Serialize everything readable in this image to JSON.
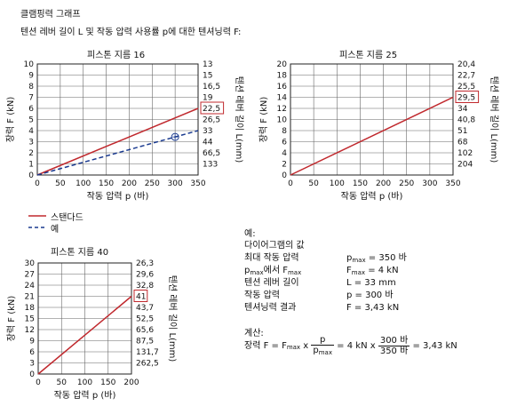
{
  "header": {
    "title": "클램핑력 그래프",
    "subtitle": "텐션 레버 길이 L 및 작동 압력 사용률 p에 대한 텐셔닝력 F:"
  },
  "colors": {
    "standard": "#c0282d",
    "example": "#1a3a8f",
    "grid": "#666666"
  },
  "chart_data": [
    {
      "type": "line",
      "title": "피스톤 지름 16",
      "xlabel": "작동 압력 p (바)",
      "ylabel": "장력 F (kN)",
      "y2label": "텐션 레버 길이 L(mm)",
      "xlim": [
        0,
        350
      ],
      "ylim": [
        0,
        10
      ],
      "xticks": [
        "0",
        "50",
        "100",
        "150",
        "200",
        "250",
        "300",
        "350"
      ],
      "yticks": [
        "0",
        "1",
        "2",
        "3",
        "4",
        "5",
        "6",
        "7",
        "8",
        "9",
        "10"
      ],
      "y2ticks": [
        "",
        "133",
        "66,5",
        "44",
        "33",
        "26,5",
        "22,5",
        "19",
        "16,5",
        "15",
        "13"
      ],
      "highlight_y2": "22,5",
      "series": [
        {
          "name": "스탠다드",
          "style": "solid",
          "x": [
            0,
            350
          ],
          "y": [
            0,
            6
          ]
        },
        {
          "name": "예",
          "style": "dashed",
          "x": [
            0,
            300,
            350
          ],
          "y": [
            0,
            3.43,
            4
          ]
        }
      ],
      "marker": {
        "x": 300,
        "y": 3.43
      }
    },
    {
      "type": "line",
      "title": "피스톤 지름 25",
      "xlabel": "작동 압력 p (바)",
      "ylabel": "장력 F (kN)",
      "y2label": "텐션 레버 길이 L(mm)",
      "xlim": [
        0,
        350
      ],
      "ylim": [
        0,
        20
      ],
      "xticks": [
        "0",
        "50",
        "100",
        "150",
        "200",
        "250",
        "300",
        "350"
      ],
      "yticks": [
        "0",
        "2",
        "4",
        "6",
        "8",
        "10",
        "12",
        "14",
        "16",
        "18",
        "20"
      ],
      "y2ticks": [
        "",
        "204",
        "102",
        "68",
        "51",
        "40,8",
        "34",
        "29,5",
        "25,5",
        "22,7",
        "20,4"
      ],
      "highlight_y2": "29,5",
      "series": [
        {
          "name": "스탠다드",
          "style": "solid",
          "x": [
            0,
            350
          ],
          "y": [
            0,
            14
          ]
        }
      ]
    },
    {
      "type": "line",
      "title": "피스톤 지름 40",
      "xlabel": "작동 압력 p (바)",
      "ylabel": "장력 F (kN)",
      "y2label": "텐션 레버 길이 L(mm)",
      "xlim": [
        0,
        200
      ],
      "ylim": [
        0,
        30
      ],
      "xticks": [
        "0",
        "50",
        "100",
        "150",
        "200"
      ],
      "yticks": [
        "0",
        "3",
        "6",
        "9",
        "12",
        "15",
        "18",
        "21",
        "24",
        "27",
        "30"
      ],
      "y2ticks": [
        "",
        "262,5",
        "131,7",
        "87,5",
        "65,6",
        "52,5",
        "43,7",
        "41",
        "32,8",
        "29,6",
        "26,3"
      ],
      "highlight_y2": "41",
      "series": [
        {
          "name": "스탠다드",
          "style": "solid",
          "x": [
            0,
            200
          ],
          "y": [
            0,
            21
          ]
        }
      ]
    }
  ],
  "legend": {
    "items": [
      {
        "label": "스탠다드",
        "style": "solid"
      },
      {
        "label": "예",
        "style": "dashed"
      }
    ]
  },
  "example": {
    "heading": "예:",
    "diagram_values": "다이어그램의 값",
    "rows": [
      {
        "label": "최대 작동 압력",
        "value": "p",
        "value_sub": "max",
        "value_rest": " = 350 바"
      },
      {
        "label_main": "p",
        "label_sub": "max",
        "label_mid": "에서 F",
        "label_sub2": "max",
        "value": "F",
        "value_sub": "max",
        "value_rest": " = 4 kN"
      },
      {
        "label": "텐션 레버 길이",
        "value": "L = 33 mm"
      },
      {
        "label": "작동 압력",
        "value": "p = 300 바"
      },
      {
        "label": "텐셔닝력 결과",
        "value": "F = 3,43 kN"
      }
    ],
    "calc_heading": "계산:",
    "calc": {
      "lhs": "장력 F = F",
      "lhs_sub": "max",
      "x1": " x ",
      "frac1_num": "p",
      "frac1_den": "p",
      "frac1_den_sub": "max",
      "mid": " = 4 kN x ",
      "frac2_num": "300 바",
      "frac2_den": "350 바",
      "result": " = 3,43 kN"
    }
  }
}
